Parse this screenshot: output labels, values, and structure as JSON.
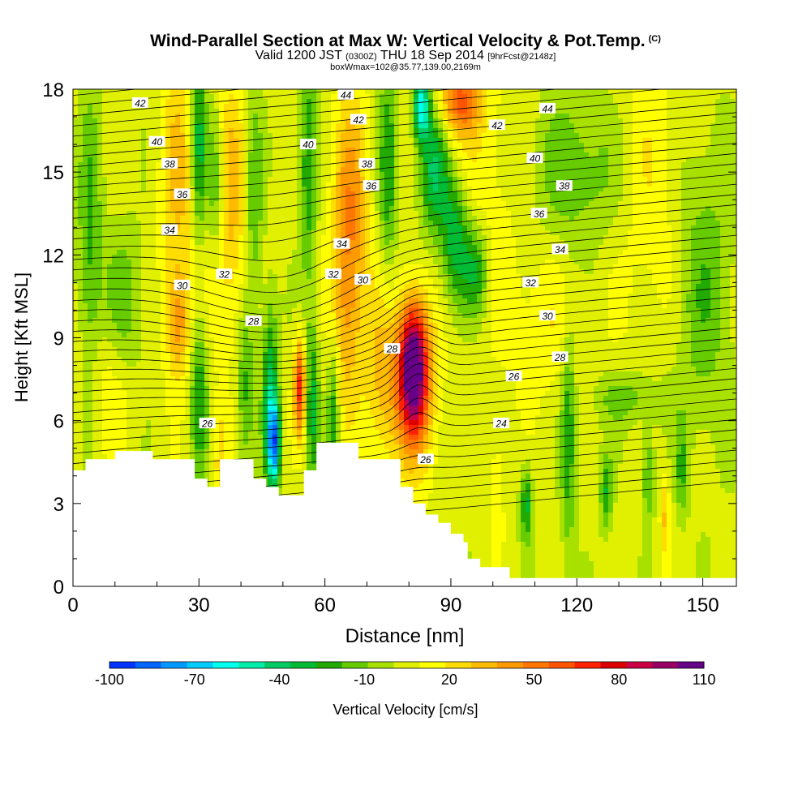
{
  "header": {
    "title": "Wind-Parallel Section at Max W: Vertical Velocity & Pot.Temp.",
    "copyright": "(C)",
    "valid_prefix": "Valid 1200 JST",
    "valid_utc": "(0300Z)",
    "valid_date": "THU 18 Sep 2014",
    "forecast": "[9hrFcst@2148z]",
    "box_info": "boxWmax=102@35.77,139.00,2169m"
  },
  "chart_data": {
    "type": "heatmap",
    "xlabel": "Distance [nm]",
    "ylabel": "Height [Kft MSL]",
    "xlim": [
      0,
      158
    ],
    "ylim": [
      0,
      18
    ],
    "x_ticks": [
      0,
      30,
      60,
      90,
      120,
      150
    ],
    "y_ticks": [
      0,
      3,
      6,
      9,
      12,
      15,
      18
    ],
    "colorbar": {
      "label": "Vertical Velocity [cm/s]",
      "tick_labels": [
        -100,
        -70,
        -40,
        -10,
        20,
        50,
        80,
        110
      ],
      "colors": [
        "#0033ff",
        "#0066ff",
        "#0099ff",
        "#00ccff",
        "#00ffee",
        "#00eeaa",
        "#00cc66",
        "#00bb33",
        "#22aa00",
        "#66cc00",
        "#a8e000",
        "#e0f000",
        "#ffff00",
        "#ffdd00",
        "#ffbb00",
        "#ff9900",
        "#ff7700",
        "#ff5500",
        "#ff2200",
        "#dd0000",
        "#cc0044",
        "#990066",
        "#660088"
      ]
    },
    "terrain_kft": [
      [
        0,
        4.2
      ],
      [
        3,
        4.2
      ],
      [
        3,
        4.6
      ],
      [
        10,
        4.6
      ],
      [
        10,
        4.9
      ],
      [
        19,
        4.9
      ],
      [
        19,
        4.6
      ],
      [
        29,
        4.6
      ],
      [
        29,
        3.9
      ],
      [
        32,
        3.9
      ],
      [
        32,
        3.6
      ],
      [
        35,
        3.6
      ],
      [
        35,
        4.6
      ],
      [
        43,
        4.6
      ],
      [
        43,
        3.9
      ],
      [
        46,
        3.9
      ],
      [
        46,
        3.6
      ],
      [
        49,
        3.6
      ],
      [
        49,
        3.3
      ],
      [
        55,
        3.3
      ],
      [
        55,
        4.2
      ],
      [
        58,
        4.2
      ],
      [
        58,
        5.2
      ],
      [
        68,
        5.2
      ],
      [
        68,
        4.6
      ],
      [
        78,
        4.6
      ],
      [
        78,
        3.6
      ],
      [
        81,
        3.6
      ],
      [
        81,
        3.0
      ],
      [
        84,
        3.0
      ],
      [
        84,
        2.6
      ],
      [
        87,
        2.6
      ],
      [
        87,
        2.3
      ],
      [
        90,
        2.3
      ],
      [
        90,
        1.9
      ],
      [
        93,
        1.9
      ],
      [
        93,
        1.6
      ],
      [
        94,
        1.6
      ],
      [
        94,
        1.0
      ],
      [
        97,
        1.0
      ],
      [
        97,
        0.7
      ],
      [
        104,
        0.7
      ],
      [
        104,
        0.3
      ],
      [
        158,
        0.3
      ]
    ],
    "w_features": [
      {
        "x": 81,
        "y": 8.0,
        "w": 102
      },
      {
        "x": 48,
        "y": 5.2,
        "w": -65
      },
      {
        "x": 83,
        "y": 17.5,
        "w": -60
      },
      {
        "x": 54,
        "y": 7.2,
        "w": 65
      },
      {
        "x": 92,
        "y": 17.6,
        "w": 50
      }
    ],
    "theta_contour_labels": [
      {
        "value": 42,
        "x": 16,
        "y": 17.5
      },
      {
        "value": 40,
        "x": 20,
        "y": 16.1
      },
      {
        "value": 38,
        "x": 23,
        "y": 15.3
      },
      {
        "value": 36,
        "x": 26,
        "y": 14.2
      },
      {
        "value": 34,
        "x": 23,
        "y": 12.9
      },
      {
        "value": 32,
        "x": 36,
        "y": 11.3
      },
      {
        "value": 30,
        "x": 26,
        "y": 10.9
      },
      {
        "value": 28,
        "x": 43,
        "y": 9.6
      },
      {
        "value": 26,
        "x": 32,
        "y": 5.9
      },
      {
        "value": 44,
        "x": 65,
        "y": 17.8
      },
      {
        "value": 42,
        "x": 68,
        "y": 16.9
      },
      {
        "value": 40,
        "x": 56,
        "y": 16.0
      },
      {
        "value": 38,
        "x": 70,
        "y": 15.3
      },
      {
        "value": 36,
        "x": 71,
        "y": 14.5
      },
      {
        "value": 34,
        "x": 64,
        "y": 12.4
      },
      {
        "value": 32,
        "x": 62,
        "y": 11.3
      },
      {
        "value": 30,
        "x": 69,
        "y": 11.1
      },
      {
        "value": 28,
        "x": 76,
        "y": 8.6
      },
      {
        "value": 42,
        "x": 101,
        "y": 16.7
      },
      {
        "value": 44,
        "x": 113,
        "y": 17.3
      },
      {
        "value": 40,
        "x": 110,
        "y": 15.5
      },
      {
        "value": 38,
        "x": 117,
        "y": 14.5
      },
      {
        "value": 36,
        "x": 111,
        "y": 13.5
      },
      {
        "value": 34,
        "x": 116,
        "y": 12.2
      },
      {
        "value": 32,
        "x": 109,
        "y": 11.0
      },
      {
        "value": 30,
        "x": 113,
        "y": 9.8
      },
      {
        "value": 28,
        "x": 116,
        "y": 8.3
      },
      {
        "value": 26,
        "x": 105,
        "y": 7.6
      },
      {
        "value": 24,
        "x": 102,
        "y": 5.9
      },
      {
        "value": 26,
        "x": 84,
        "y": 4.6
      }
    ]
  }
}
